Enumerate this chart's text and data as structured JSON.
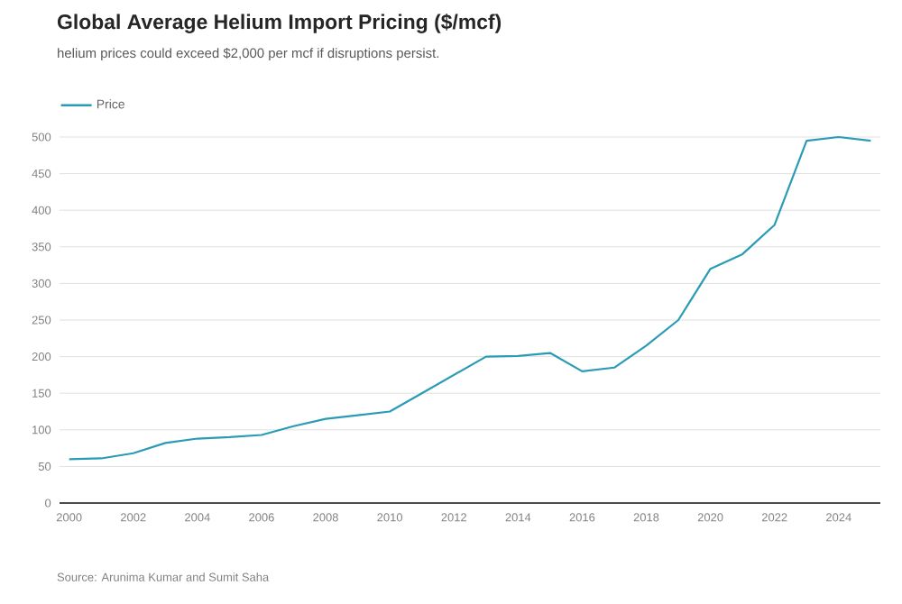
{
  "chart_data": {
    "type": "line",
    "title": "Global Average Helium Import Pricing ($/mcf)",
    "subtitle": "helium prices could exceed $2,000 per mcf if disruptions persist.",
    "annotations": [
      "Source: Arunima Kumar and Sumit Saha"
    ],
    "x": [
      2000,
      2001,
      2002,
      2003,
      2004,
      2005,
      2006,
      2007,
      2008,
      2009,
      2010,
      2011,
      2012,
      2013,
      2014,
      2015,
      2016,
      2017,
      2018,
      2019,
      2020,
      2021,
      2022,
      2023,
      2024,
      2025
    ],
    "series": [
      {
        "name": "Price",
        "color": "#2a9bb5",
        "values": [
          60,
          61,
          68,
          82,
          88,
          90,
          93,
          105,
          115,
          120,
          125,
          150,
          175,
          200,
          201,
          205,
          180,
          185,
          215,
          250,
          320,
          340,
          380,
          495,
          500,
          495
        ]
      }
    ],
    "xlim": [
      1999.7,
      2025.3
    ],
    "ylim": [
      0,
      500
    ],
    "xticks": [
      2000,
      2002,
      2004,
      2006,
      2008,
      2010,
      2012,
      2014,
      2016,
      2018,
      2020,
      2022,
      2024
    ],
    "yticks": [
      0,
      50,
      100,
      150,
      200,
      250,
      300,
      350,
      400,
      450,
      500
    ],
    "grid": "y",
    "legend": "top left",
    "marker": "none",
    "line_style": "solid"
  }
}
